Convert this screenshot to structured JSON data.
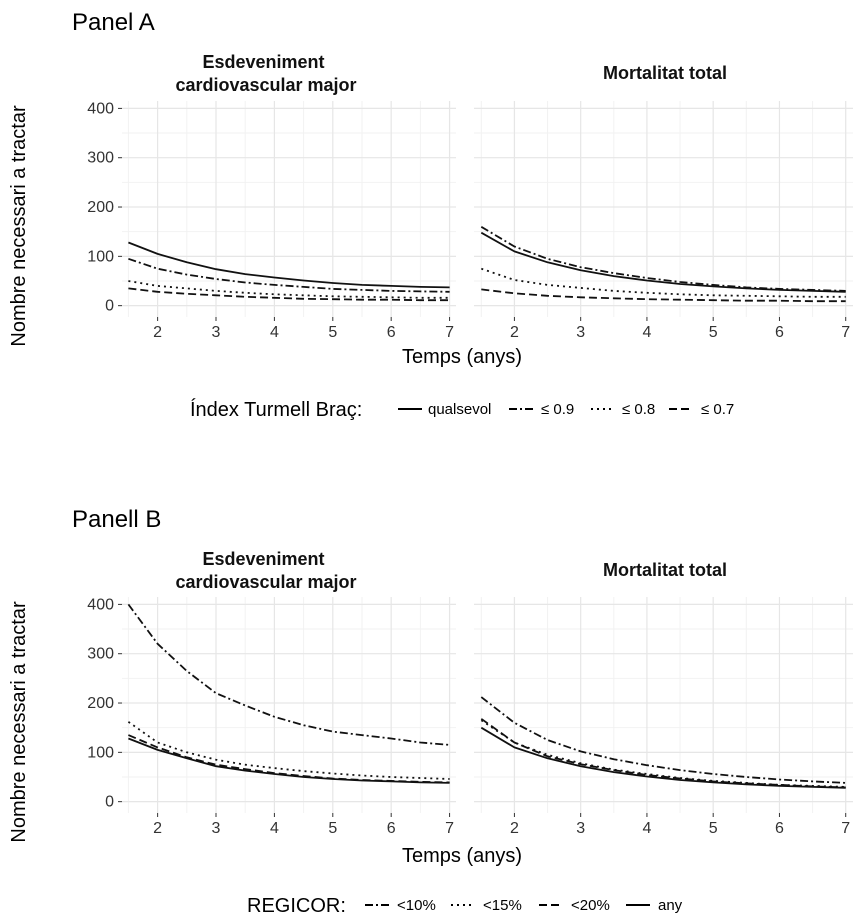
{
  "panels": [
    {
      "title": "Panel A",
      "ylabel": "Nombre necessari a tractar",
      "xlabel": "Temps (anys)",
      "legend_title": "Índex Turmell Braç:",
      "legend": [
        {
          "label": "qualsevol",
          "style": "solid"
        },
        {
          "label": "≤ 0.9",
          "style": "dotdash"
        },
        {
          "label": "≤ 0.8",
          "style": "dotted"
        },
        {
          "label": "≤ 0.7",
          "style": "dashed"
        }
      ]
    },
    {
      "title": "Panell B",
      "ylabel": "Nombre necessari a tractar",
      "xlabel": "Temps (anys)",
      "legend_title": "REGICOR:",
      "legend": [
        {
          "label": "<10%",
          "style": "dotdash"
        },
        {
          "label": "<15%",
          "style": "dotted"
        },
        {
          "label": "<20%",
          "style": "dashed"
        },
        {
          "label": "any",
          "style": "solid"
        }
      ]
    }
  ],
  "chart_data": [
    {
      "type": "line",
      "title": "Esdeveniment cardiovascular major",
      "title_lines": [
        "Esdeveniment",
        "cardiovascular major"
      ],
      "xlabel": "Temps (anys)",
      "ylabel": "Nombre necessari a tractar",
      "xlim": [
        1.5,
        7
      ],
      "ylim": [
        0,
        400
      ],
      "xticks": [
        2,
        3,
        4,
        5,
        6,
        7
      ],
      "yticks": [
        0,
        100,
        200,
        300,
        400
      ],
      "grid": true,
      "x": [
        1.5,
        2,
        2.5,
        3,
        3.5,
        4,
        4.5,
        5,
        5.5,
        6,
        6.5,
        7
      ],
      "series": [
        {
          "name": "qualsevol",
          "style": "solid",
          "values": [
            128,
            105,
            88,
            74,
            64,
            57,
            51,
            46,
            42,
            40,
            38,
            37
          ]
        },
        {
          "name": "≤ 0.9",
          "style": "dotdash",
          "values": [
            95,
            75,
            63,
            54,
            47,
            42,
            38,
            34,
            32,
            30,
            29,
            28
          ]
        },
        {
          "name": "≤ 0.8",
          "style": "dotted",
          "values": [
            50,
            40,
            35,
            30,
            26,
            23,
            21,
            19,
            18,
            17,
            16,
            16
          ]
        },
        {
          "name": "≤ 0.7",
          "style": "dashed",
          "values": [
            35,
            28,
            24,
            21,
            18,
            16,
            14,
            13,
            12,
            12,
            11,
            11
          ]
        }
      ]
    },
    {
      "type": "line",
      "title": "Mortalitat total",
      "title_lines": [
        "Mortalitat total"
      ],
      "xlabel": "Temps (anys)",
      "ylabel": "Nombre necessari a tractar",
      "xlim": [
        1.5,
        7
      ],
      "ylim": [
        0,
        400
      ],
      "xticks": [
        2,
        3,
        4,
        5,
        6,
        7
      ],
      "yticks": [
        0,
        100,
        200,
        300,
        400
      ],
      "grid": true,
      "x": [
        1.5,
        2,
        2.5,
        3,
        3.5,
        4,
        4.5,
        5,
        5.5,
        6,
        6.5,
        7
      ],
      "series": [
        {
          "name": "qualsevol",
          "style": "solid",
          "values": [
            148,
            110,
            88,
            72,
            60,
            51,
            44,
            39,
            35,
            32,
            30,
            28
          ]
        },
        {
          "name": "≤ 0.9",
          "style": "dotdash",
          "values": [
            160,
            120,
            95,
            78,
            66,
            56,
            48,
            42,
            37,
            34,
            32,
            30
          ]
        },
        {
          "name": "≤ 0.8",
          "style": "dotted",
          "values": [
            75,
            52,
            42,
            36,
            30,
            26,
            23,
            21,
            20,
            19,
            18,
            18
          ]
        },
        {
          "name": "≤ 0.7",
          "style": "dashed",
          "values": [
            33,
            25,
            20,
            17,
            15,
            13,
            12,
            11,
            10,
            10,
            9,
            9
          ]
        }
      ]
    },
    {
      "type": "line",
      "title": "Esdeveniment cardiovascular major",
      "title_lines": [
        "Esdeveniment",
        "cardiovascular major"
      ],
      "xlabel": "Temps (anys)",
      "ylabel": "Nombre necessari a tractar",
      "xlim": [
        1.5,
        7
      ],
      "ylim": [
        0,
        400
      ],
      "xticks": [
        2,
        3,
        4,
        5,
        6,
        7
      ],
      "yticks": [
        0,
        100,
        200,
        300,
        400
      ],
      "grid": true,
      "x": [
        1.5,
        2,
        2.5,
        3,
        3.5,
        4,
        4.5,
        5,
        5.5,
        6,
        6.5,
        7
      ],
      "series": [
        {
          "name": "<10%",
          "style": "dotdash",
          "values": [
            400,
            320,
            265,
            220,
            195,
            172,
            155,
            142,
            135,
            128,
            120,
            115
          ]
        },
        {
          "name": "<15%",
          "style": "dotted",
          "values": [
            162,
            120,
            100,
            85,
            75,
            68,
            62,
            57,
            53,
            50,
            48,
            46
          ]
        },
        {
          "name": "<20%",
          "style": "dashed",
          "values": [
            135,
            110,
            90,
            75,
            66,
            58,
            52,
            47,
            44,
            42,
            40,
            39
          ]
        },
        {
          "name": "any",
          "style": "solid",
          "values": [
            128,
            105,
            88,
            72,
            63,
            56,
            50,
            46,
            43,
            41,
            39,
            38
          ]
        }
      ]
    },
    {
      "type": "line",
      "title": "Mortalitat total",
      "title_lines": [
        "Mortalitat total"
      ],
      "xlabel": "Temps (anys)",
      "ylabel": "Nombre necessari a tractar",
      "xlim": [
        1.5,
        7
      ],
      "ylim": [
        0,
        400
      ],
      "xticks": [
        2,
        3,
        4,
        5,
        6,
        7
      ],
      "yticks": [
        0,
        100,
        200,
        300,
        400
      ],
      "grid": true,
      "x": [
        1.5,
        2,
        2.5,
        3,
        3.5,
        4,
        4.5,
        5,
        5.5,
        6,
        6.5,
        7
      ],
      "series": [
        {
          "name": "<10%",
          "style": "dotdash",
          "values": [
            212,
            160,
            125,
            102,
            86,
            74,
            64,
            56,
            50,
            45,
            41,
            38
          ]
        },
        {
          "name": "<15%",
          "style": "dotted",
          "values": [
            165,
            120,
            95,
            78,
            65,
            56,
            48,
            42,
            38,
            34,
            32,
            30
          ]
        },
        {
          "name": "<20%",
          "style": "dashed",
          "values": [
            168,
            120,
            92,
            76,
            64,
            54,
            47,
            41,
            37,
            34,
            31,
            29
          ]
        },
        {
          "name": "any",
          "style": "solid",
          "values": [
            150,
            110,
            88,
            72,
            60,
            51,
            44,
            39,
            35,
            32,
            30,
            28
          ]
        }
      ]
    }
  ]
}
